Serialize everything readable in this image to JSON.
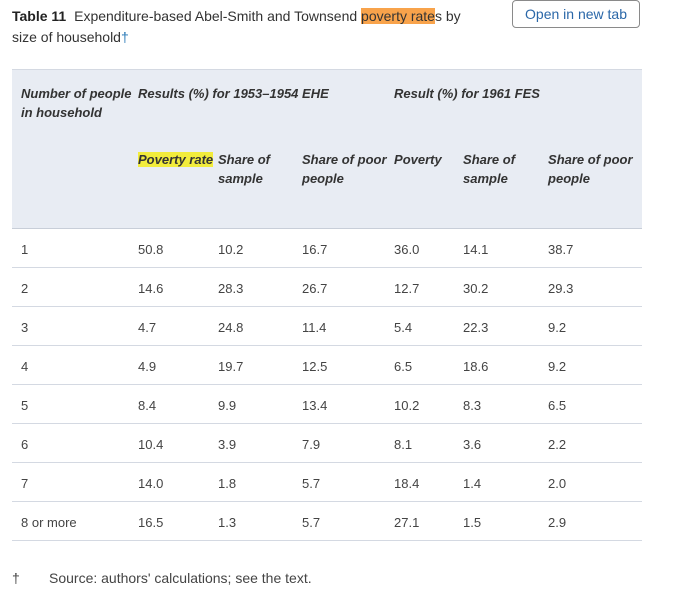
{
  "caption": {
    "label": "Table 11",
    "text_before": "Expenditure-based Abel-Smith and Townsend ",
    "highlight": "poverty rate",
    "text_after_hl": "s by",
    "text_line2": "size of household",
    "dagger": "†"
  },
  "open_button": "Open in new tab",
  "table": {
    "header1": {
      "col0": "Number of people in household",
      "group1": "Results (%) for 1953–1954 EHE",
      "group2": "Result (%) for 1961 FES"
    },
    "header2": [
      "Poverty rate",
      "Share of sample",
      "Share of poor people",
      "Poverty",
      "Share of sample",
      "Share of poor people"
    ],
    "rows": [
      [
        "1",
        "50.8",
        "10.2",
        "16.7",
        "36.0",
        "14.1",
        "38.7"
      ],
      [
        "2",
        "14.6",
        "28.3",
        "26.7",
        "12.7",
        "30.2",
        "29.3"
      ],
      [
        "3",
        "4.7",
        "24.8",
        "11.4",
        "5.4",
        "22.3",
        "9.2"
      ],
      [
        "4",
        "4.9",
        "19.7",
        "12.5",
        "6.5",
        "18.6",
        "9.2"
      ],
      [
        "5",
        "8.4",
        "9.9",
        "13.4",
        "10.2",
        "8.3",
        "6.5"
      ],
      [
        "6",
        "10.4",
        "3.9",
        "7.9",
        "8.1",
        "3.6",
        "2.2"
      ],
      [
        "7",
        "14.0",
        "1.8",
        "5.7",
        "18.4",
        "1.4",
        "2.0"
      ],
      [
        "8 or more",
        "16.5",
        "1.3",
        "5.7",
        "27.1",
        "1.5",
        "2.9"
      ]
    ]
  },
  "footnote": {
    "mark": "†",
    "text": "Source: authors' calculations; see the text."
  }
}
